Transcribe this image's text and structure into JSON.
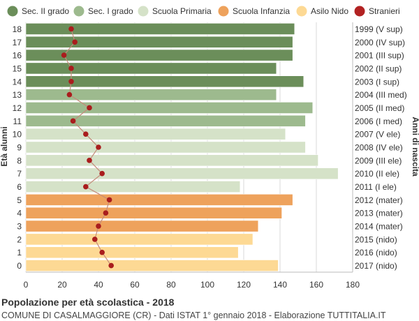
{
  "title": "Popolazione per età scolastica - 2018",
  "subtitle": "COMUNE DI CASALMAGGIORE (CR) - Dati ISTAT 1° gennaio 2018 - Elaborazione TUTTITALIA.IT",
  "chart_data": {
    "type": "bar",
    "orientation": "horizontal",
    "ylabel": "Età alunni",
    "ylabel_right": "Anni di nascita",
    "xlim": [
      0,
      180
    ],
    "x_ticks": [
      0,
      20,
      40,
      60,
      80,
      100,
      120,
      140,
      160,
      180
    ],
    "grid": true,
    "legend_position": "top",
    "legend": [
      {
        "name": "Sec. II grado",
        "color": "#6b8e5a",
        "marker": "circle"
      },
      {
        "name": "Sec. I grado",
        "color": "#9dba8e",
        "marker": "circle"
      },
      {
        "name": "Scuola Primaria",
        "color": "#d5e2c8",
        "marker": "circle"
      },
      {
        "name": "Scuola Infanzia",
        "color": "#eea25c",
        "marker": "circle"
      },
      {
        "name": "Asilo Nido",
        "color": "#fdd994",
        "marker": "circle"
      },
      {
        "name": "Stranieri",
        "color": "#b22222",
        "marker": "circle"
      }
    ],
    "categories": [
      "18",
      "17",
      "16",
      "15",
      "14",
      "13",
      "12",
      "11",
      "10",
      "9",
      "8",
      "7",
      "6",
      "5",
      "4",
      "3",
      "2",
      "1",
      "0"
    ],
    "birth_years": [
      "1999 (V sup)",
      "2000 (IV sup)",
      "2001 (III sup)",
      "2002 (II sup)",
      "2003 (I sup)",
      "2004 (III med)",
      "2005 (II med)",
      "2006 (I med)",
      "2007 (V ele)",
      "2008 (IV ele)",
      "2009 (III ele)",
      "2010 (II ele)",
      "2011 (I ele)",
      "2012 (mater)",
      "2013 (mater)",
      "2014 (mater)",
      "2015 (nido)",
      "2016 (nido)",
      "2017 (nido)"
    ],
    "groups": [
      0,
      0,
      0,
      0,
      0,
      1,
      1,
      1,
      2,
      2,
      2,
      2,
      2,
      3,
      3,
      3,
      4,
      4,
      4
    ],
    "values": [
      148,
      147,
      147,
      138,
      153,
      138,
      158,
      154,
      143,
      154,
      161,
      172,
      118,
      147,
      141,
      128,
      125,
      117,
      139
    ],
    "stranieri": [
      25,
      27,
      21,
      25,
      25,
      24,
      35,
      26,
      33,
      40,
      35,
      42,
      33,
      46,
      44,
      40,
      38,
      42,
      47
    ]
  }
}
